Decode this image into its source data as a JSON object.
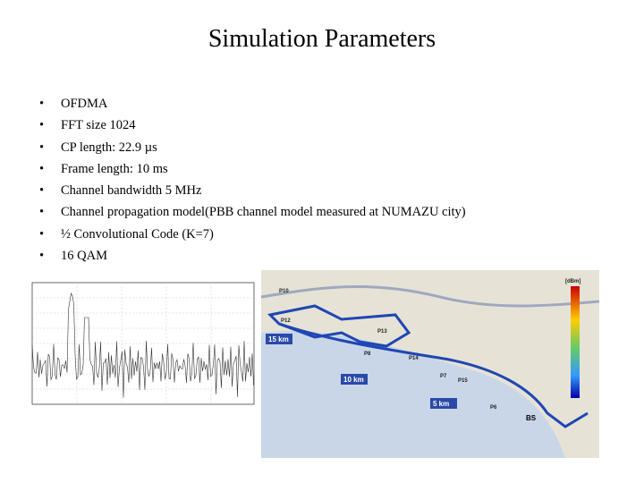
{
  "title": "Simulation Parameters",
  "bullets": [
    "OFDMA",
    "FFT size 1024",
    "CP length: 22.9 µs",
    "Frame length: 10 ms",
    "Channel bandwidth 5 MHz",
    "Channel propagation model(PBB channel model measured at NUMAZU city)",
    "½ Convolutional Code (K=7)",
    "16 QAM"
  ],
  "map_labels": [
    "15 km",
    "10 km",
    "5 km",
    "BS",
    "P10",
    "P12",
    "P13",
    "P14",
    "P15",
    "P7",
    "P8",
    "P6",
    "[dBm]"
  ]
}
